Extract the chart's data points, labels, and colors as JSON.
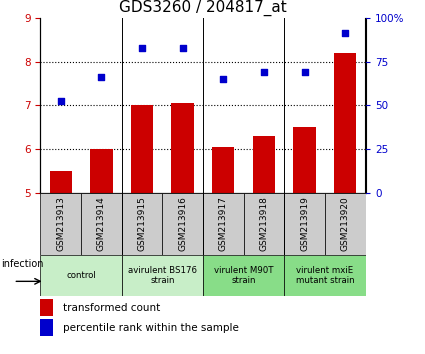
{
  "title": "GDS3260 / 204817_at",
  "categories": [
    "GSM213913",
    "GSM213914",
    "GSM213915",
    "GSM213916",
    "GSM213917",
    "GSM213918",
    "GSM213919",
    "GSM213920"
  ],
  "bar_values": [
    5.5,
    6.0,
    7.0,
    7.05,
    6.05,
    6.3,
    6.5,
    8.2
  ],
  "scatter_values": [
    7.1,
    7.65,
    8.3,
    8.3,
    7.6,
    7.75,
    7.75,
    8.65
  ],
  "bar_color": "#cc0000",
  "scatter_color": "#0000cc",
  "ylim_left": [
    5,
    9
  ],
  "ylim_right": [
    0,
    100
  ],
  "yticks_left": [
    5,
    6,
    7,
    8,
    9
  ],
  "yticks_right": [
    0,
    25,
    50,
    75,
    100
  ],
  "yticklabels_right": [
    "0",
    "25",
    "50",
    "75",
    "100%"
  ],
  "groups": [
    {
      "label": "control",
      "start": 0,
      "end": 2,
      "color": "#c8eec8"
    },
    {
      "label": "avirulent BS176\nstrain",
      "start": 2,
      "end": 4,
      "color": "#c8eec8"
    },
    {
      "label": "virulent M90T\nstrain",
      "start": 4,
      "end": 6,
      "color": "#88dd88"
    },
    {
      "label": "virulent mxiE\nmutant strain",
      "start": 6,
      "end": 8,
      "color": "#88dd88"
    }
  ],
  "infection_label": "infection",
  "legend_bar_label": "transformed count",
  "legend_scatter_label": "percentile rank within the sample",
  "title_fontsize": 11,
  "tick_fontsize": 7.5,
  "sample_box_color": "#cccccc",
  "group_border_color": "#000000",
  "dotted_line_color": "#000000",
  "bar_width": 0.55
}
